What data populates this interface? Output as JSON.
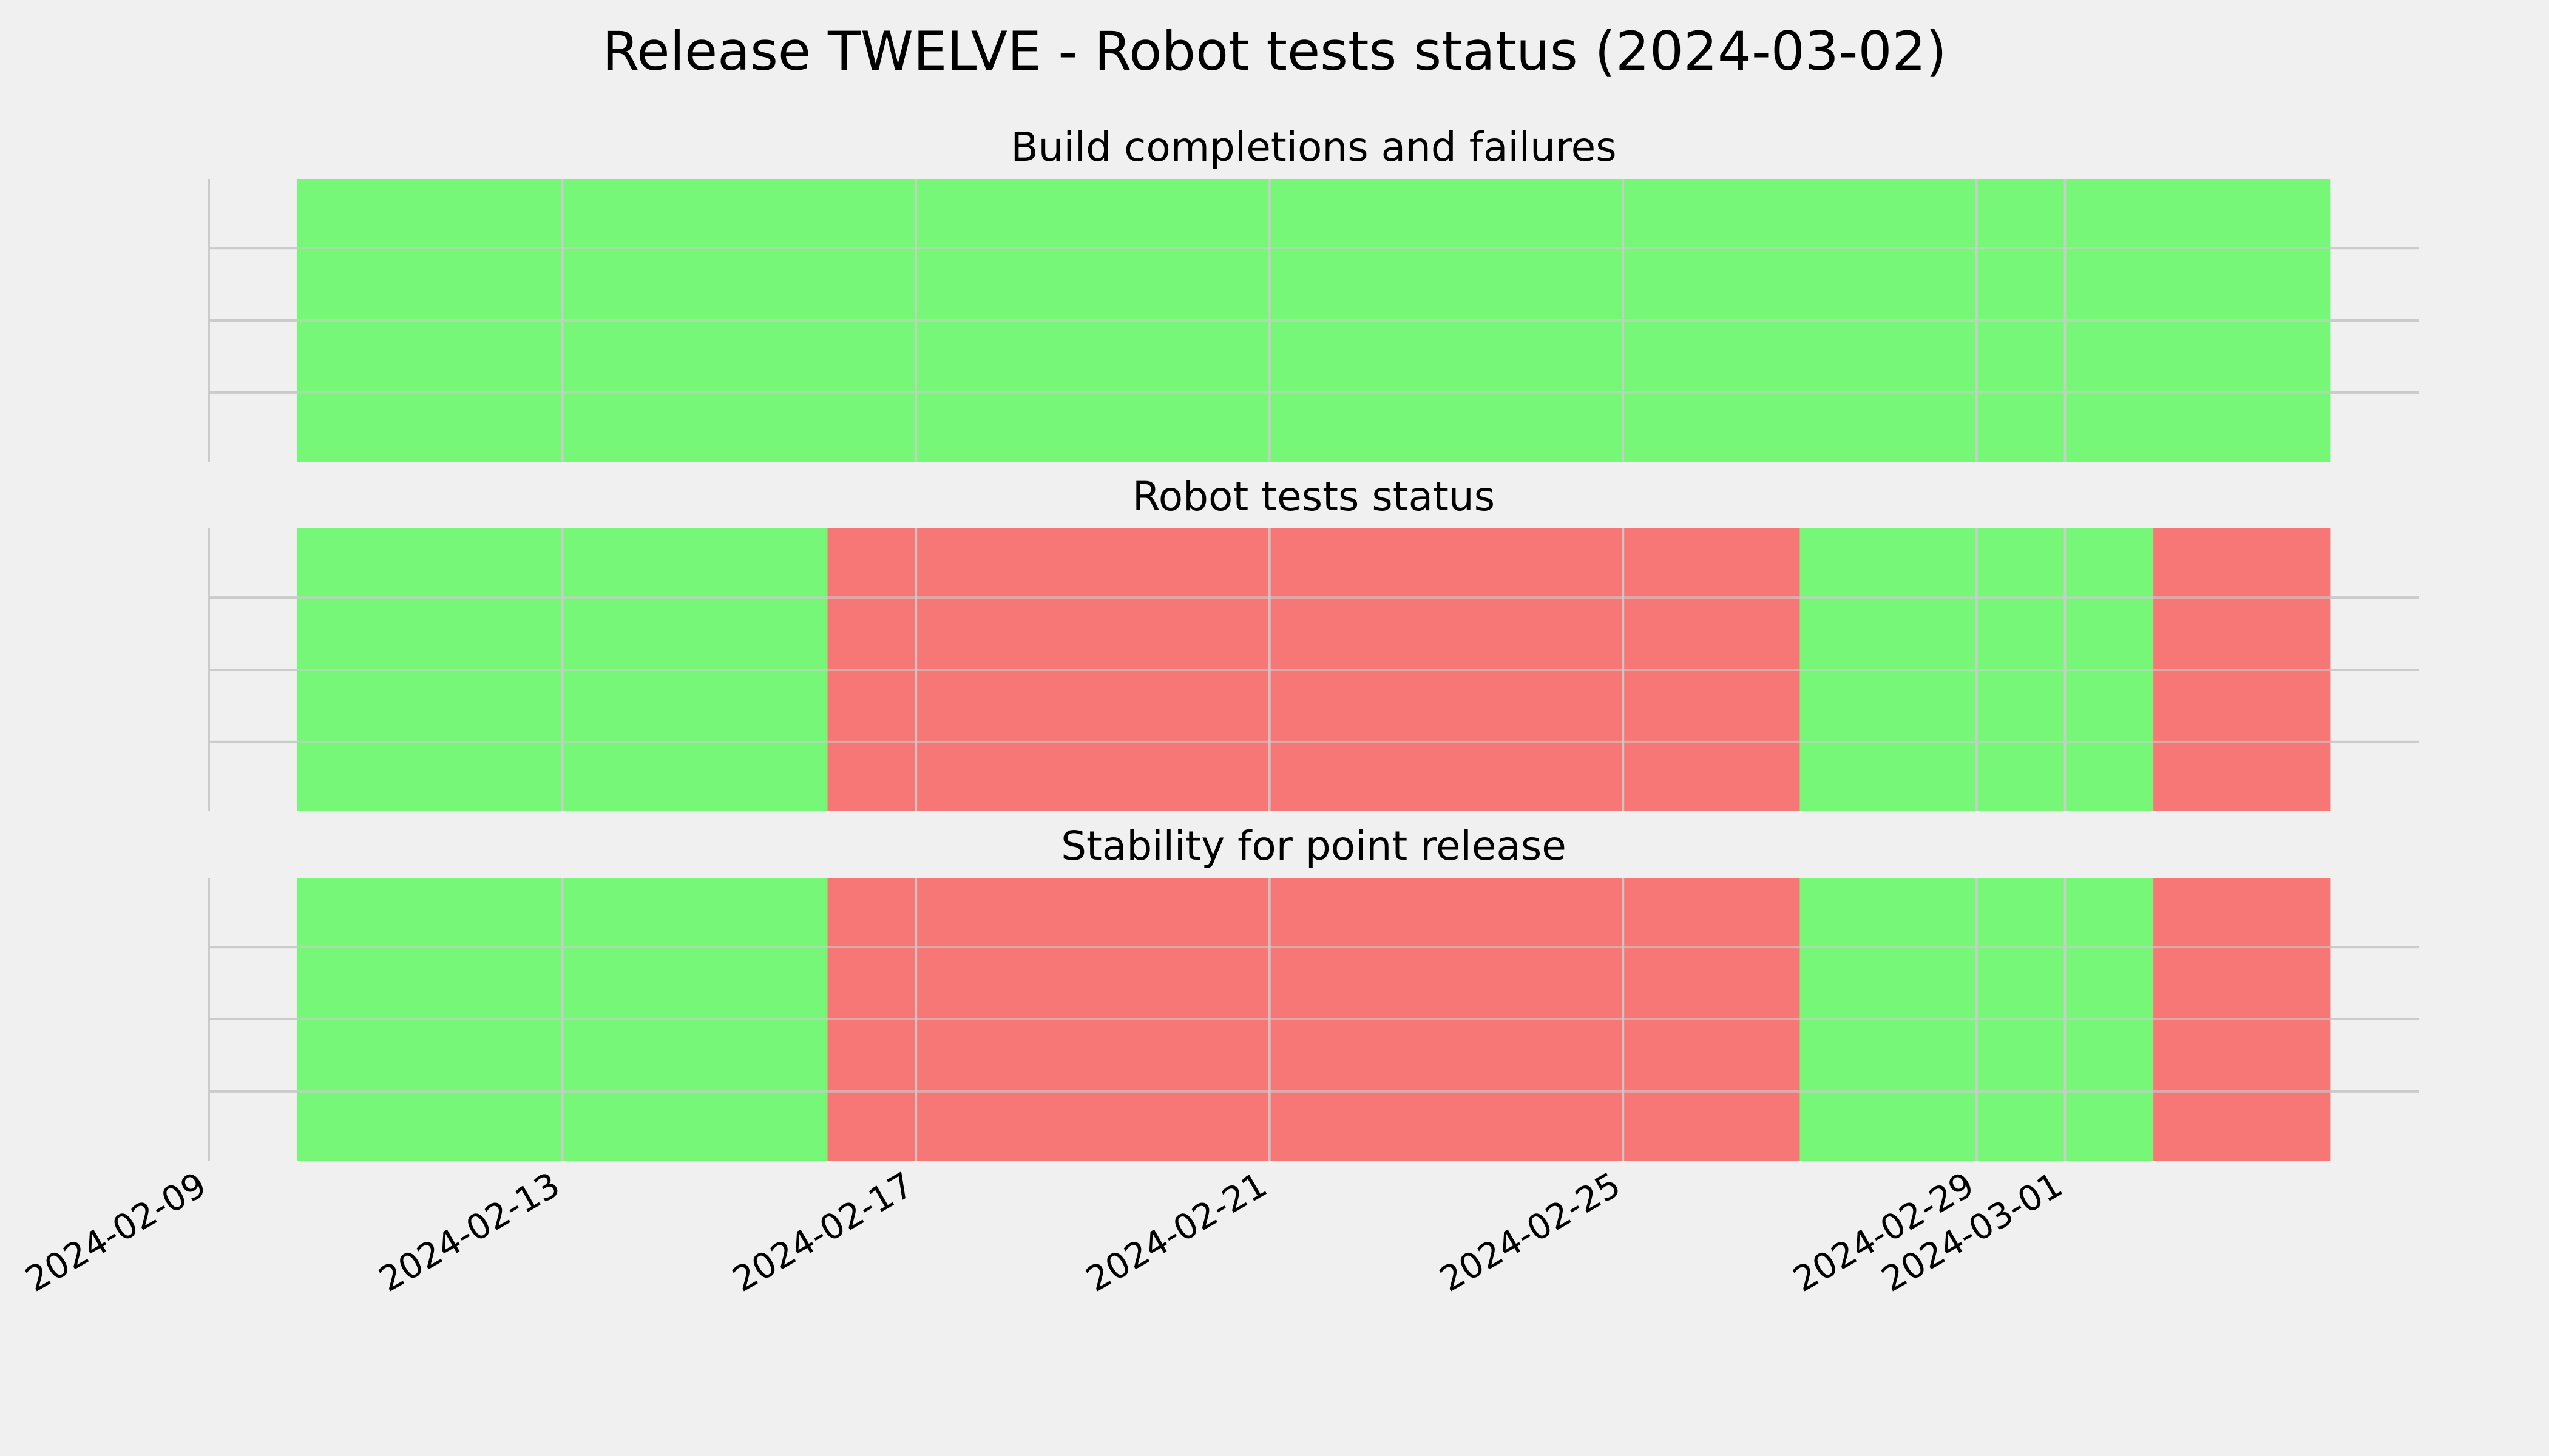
{
  "chart_data": {
    "type": "timeline-status",
    "title": "Release TWELVE - Robot tests status (2024-03-02)",
    "x_range": [
      "2024-02-09",
      "2024-03-05"
    ],
    "x_ticks": [
      "2024-02-09",
      "2024-02-13",
      "2024-02-17",
      "2024-02-21",
      "2024-02-25",
      "2024-02-29",
      "2024-03-01"
    ],
    "grid": true,
    "colors": {
      "pass": "#77f777",
      "fail": "#f77777",
      "background": "#f0f0f0"
    },
    "panels": [
      {
        "title": "Build completions and failures",
        "segments": [
          {
            "start": "2024-02-10",
            "end": "2024-03-04",
            "status": "pass"
          }
        ]
      },
      {
        "title": "Robot tests status",
        "segments": [
          {
            "start": "2024-02-10",
            "end": "2024-02-16",
            "status": "pass"
          },
          {
            "start": "2024-02-16",
            "end": "2024-02-27",
            "status": "fail"
          },
          {
            "start": "2024-02-27",
            "end": "2024-03-02",
            "status": "pass"
          },
          {
            "start": "2024-03-02",
            "end": "2024-03-04",
            "status": "fail"
          }
        ]
      },
      {
        "title": "Stability for point release",
        "segments": [
          {
            "start": "2024-02-10",
            "end": "2024-02-16",
            "status": "pass"
          },
          {
            "start": "2024-02-16",
            "end": "2024-02-27",
            "status": "fail"
          },
          {
            "start": "2024-02-27",
            "end": "2024-03-02",
            "status": "pass"
          },
          {
            "start": "2024-03-02",
            "end": "2024-03-04",
            "status": "fail"
          }
        ]
      }
    ]
  }
}
